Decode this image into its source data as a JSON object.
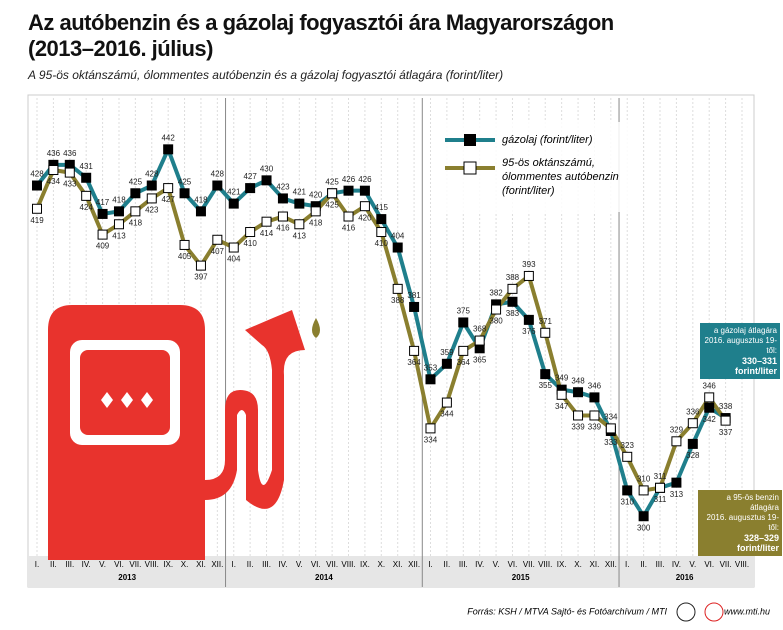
{
  "chart_data": {
    "type": "line",
    "title": [
      "Az autóbenzin és a gázolaj fogyasztói ára Magyarországon",
      "(2013–2016. július)"
    ],
    "subtitle": "A 95-ös oktánszámú, ólommentes autóbenzin és a gázolaj fogyasztói átlagára (forint/liter)",
    "categories": [
      "I.",
      "II.",
      "III.",
      "IV.",
      "V.",
      "VI.",
      "VII.",
      "VIII.",
      "IX.",
      "X.",
      "XI.",
      "XII.",
      "I.",
      "II.",
      "III.",
      "IV.",
      "V.",
      "VI.",
      "VII.",
      "VIII.",
      "IX.",
      "X.",
      "XI.",
      "XII.",
      "I.",
      "II.",
      "III.",
      "IV.",
      "V.",
      "VI.",
      "VII.",
      "VIII.",
      "IX.",
      "X.",
      "XI.",
      "XII.",
      "I.",
      "II.",
      "III.",
      "IV.",
      "V.",
      "VI.",
      "VII.",
      "VIII."
    ],
    "years": [
      "2013",
      "2014",
      "2015",
      "2016"
    ],
    "ylim": [
      285,
      458
    ],
    "series": [
      {
        "name": "gázolaj (forint/liter)",
        "color": "#1f7f8c",
        "marker": "#000000",
        "values": [
          428,
          436,
          436,
          431,
          417,
          418,
          425,
          428,
          442,
          425,
          418,
          428,
          421,
          427,
          430,
          423,
          421,
          420,
          425,
          426,
          426,
          415,
          404,
          381,
          353,
          359,
          375,
          365,
          382,
          383,
          376,
          355,
          349,
          348,
          346,
          333,
          310,
          300,
          311,
          313,
          328,
          342,
          338,
          null
        ]
      },
      {
        "name": "95-ös oktánszámú, ólommentes autóbenzin (forint/liter)",
        "color": "#8a7f2f",
        "marker": "#ffffff",
        "values": [
          419,
          434,
          433,
          424,
          409,
          413,
          418,
          423,
          427,
          405,
          397,
          407,
          404,
          410,
          414,
          416,
          413,
          418,
          425,
          416,
          420,
          410,
          388,
          364,
          334,
          344,
          364,
          368,
          380,
          388,
          393,
          371,
          347,
          339,
          339,
          334,
          323,
          310,
          311,
          329,
          336,
          346,
          337,
          null
        ]
      }
    ],
    "annotations": [
      [
        "a gázolaj átlagára",
        "2016. augusztus 19-től:",
        "330–331 forint/liter"
      ],
      [
        "a 95-ös benzin átlagára",
        "2016. augusztus 19-től:",
        "328–329 forint/liter"
      ]
    ],
    "source": "Forrás: KSH / MTVA Sajtó- és Fotóarchívum / MTI",
    "website": "www.mti.hu"
  }
}
